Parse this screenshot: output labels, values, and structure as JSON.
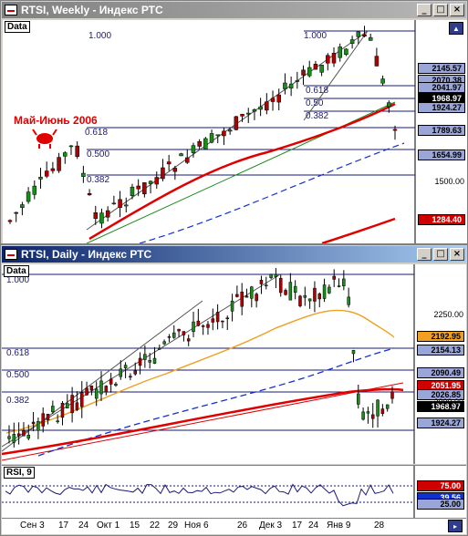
{
  "windows": {
    "weekly": {
      "title": "RTSI, Weekly - Индекс РТС",
      "pane_tag": "Data",
      "annotation": "Май-Июнь 2006",
      "fib_labels_left": [
        "1.000",
        "0.618",
        "0.500",
        "0.382"
      ],
      "fib_labels_right": [
        "1.000",
        "0.618",
        "0.50",
        "0.382"
      ],
      "price_badges": [
        {
          "value": "2145.57",
          "bg": "#9aa6d8"
        },
        {
          "value": "2070.38",
          "bg": "#9aa6d8"
        },
        {
          "value": "2041.97",
          "bg": "#9aa6d8"
        },
        {
          "value": "1968.97",
          "bg": "#000000",
          "fg": "#ffffff"
        },
        {
          "value": "1924.27",
          "bg": "#9aa6d8"
        },
        {
          "value": "1789.63",
          "bg": "#9aa6d8"
        },
        {
          "value": "1654.99",
          "bg": "#9aa6d8"
        },
        {
          "value": "1284.40",
          "bg": "#d00000",
          "fg": "#ffffff"
        }
      ],
      "axis_labels": [
        "1500.00"
      ]
    },
    "daily": {
      "title": "RTSI, Daily - Индекс РТС",
      "pane_tag": "Data",
      "fib_labels": [
        "1.000",
        "0.618",
        "0.500",
        "0.382"
      ],
      "price_badges": [
        {
          "value": "2192.95",
          "bg": "#f0a020"
        },
        {
          "value": "2154.13",
          "bg": "#9aa6d8"
        },
        {
          "value": "2090.49",
          "bg": "#9aa6d8"
        },
        {
          "value": "2051.95",
          "bg": "#d00000",
          "fg": "#ffffff"
        },
        {
          "value": "2026.85",
          "bg": "#9aa6d8"
        },
        {
          "value": "1968.97",
          "bg": "#000000",
          "fg": "#ffffff"
        },
        {
          "value": "1924.27",
          "bg": "#9aa6d8"
        }
      ],
      "axis_labels": [
        "2250.00",
        "2000.00"
      ],
      "rsi_tag": "RSI, 9",
      "rsi_badges": [
        {
          "value": "75.00",
          "bg": "#d00000",
          "fg": "#ffffff"
        },
        {
          "value": "39.56",
          "bg": "#1030d0",
          "fg": "#ffffff"
        },
        {
          "value": "25.00",
          "bg": "#9aa6d8"
        }
      ],
      "x_ticks": [
        "Сен 3",
        "17",
        "24",
        "Окт 1",
        "15",
        "22",
        "29",
        "Ноя 6",
        "26",
        "Дек 3",
        "17",
        "24",
        "Янв 9",
        "28"
      ]
    }
  },
  "colors": {
    "title_active": "#0a246a",
    "title_inactive": "#808080",
    "up_candle": "#1a8c1a",
    "down_candle": "#b00000",
    "ma_red": "#e00000",
    "ma_blue": "#1030d0",
    "ma_orange": "#f0a020",
    "fib_line": "#1a1a7a"
  }
}
